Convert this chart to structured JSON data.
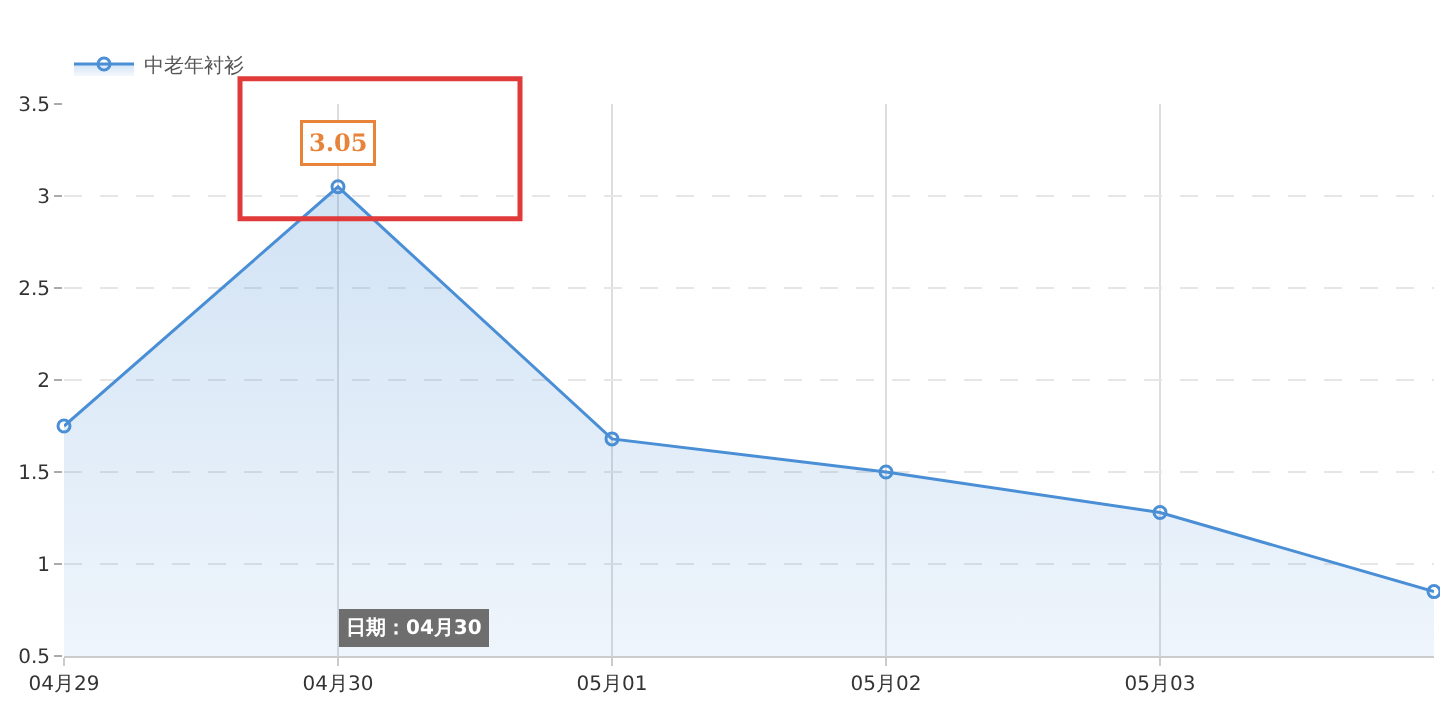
{
  "chart_data": {
    "type": "area",
    "categories": [
      "04月29",
      "04月30",
      "05月01",
      "05月02",
      "05月03",
      null
    ],
    "series": [
      {
        "name": "中老年衬衫",
        "color": "#4a8fd6",
        "values": [
          1.75,
          3.05,
          1.68,
          1.5,
          1.28,
          0.85
        ],
        "value_labels": [
          null,
          "3.05",
          null,
          null,
          null,
          null
        ]
      }
    ],
    "annotations": [
      "日期：04月30"
    ],
    "ylim": [
      0.5,
      3.5
    ],
    "yticks": [
      0.5,
      1,
      1.5,
      2,
      2.5,
      3,
      3.5
    ],
    "grid": true,
    "legend": "top left",
    "marker": "circle",
    "line_style": "solid"
  }
}
